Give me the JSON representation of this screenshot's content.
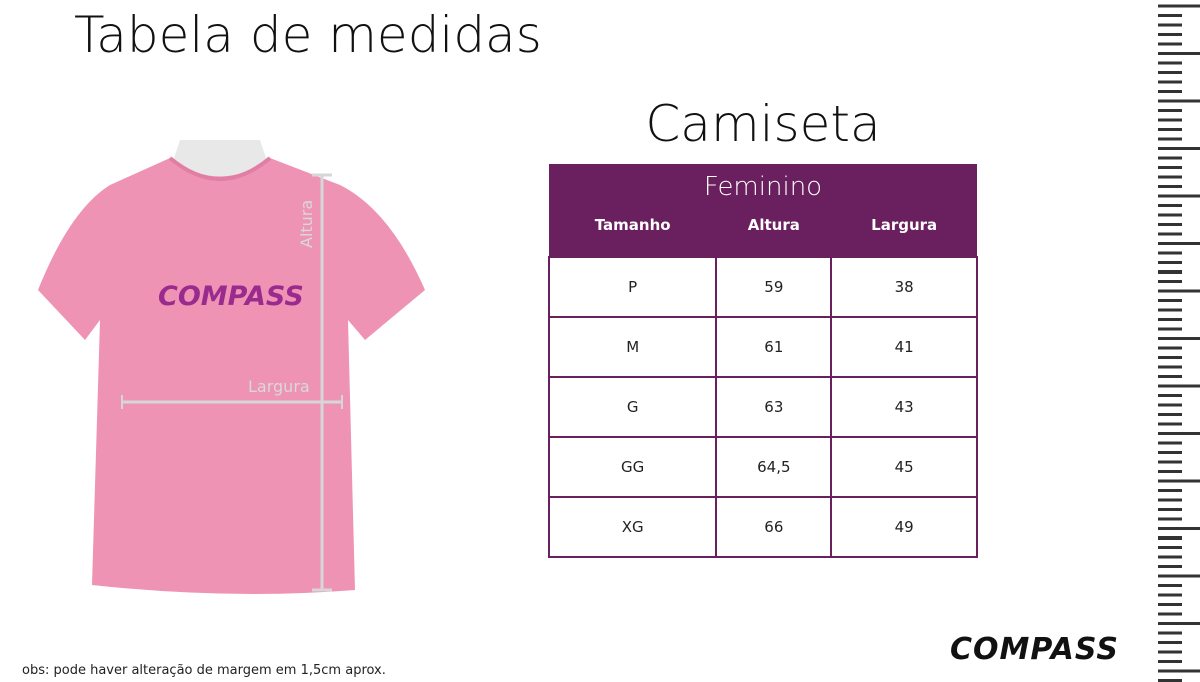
{
  "title": "Tabela de medidas",
  "product": "Camiseta",
  "table": {
    "group": "Feminino",
    "headers": [
      "Tamanho",
      "Altura",
      "Largura"
    ],
    "rows": [
      [
        "P",
        "59",
        "38"
      ],
      [
        "M",
        "61",
        "41"
      ],
      [
        "G",
        "63",
        "43"
      ],
      [
        "GG",
        "64,5",
        "45"
      ],
      [
        "XG",
        "66",
        "49"
      ]
    ]
  },
  "labels": {
    "altura": "Altura",
    "largura": "Largura"
  },
  "brand": "COMPASS",
  "note": "obs: pode haver alteração de margem em 1,5cm aprox.",
  "colors": {
    "table_header": "#6a1f5e",
    "shirt": "#ef93b5",
    "logo_on_shirt": "#9b2a8f"
  }
}
